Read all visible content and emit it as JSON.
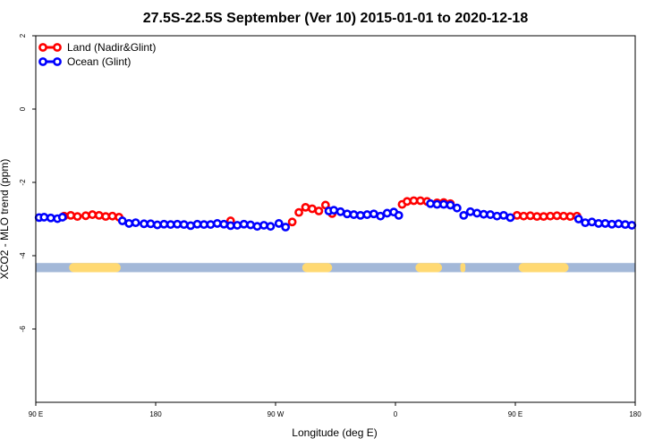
{
  "chart_data": {
    "type": "scatter",
    "title": "27.5S-22.5S September (Ver 10)   2015-01-01 to 2020-12-18",
    "xlabel": "Longitude (deg E)",
    "ylabel": "XCO2 - MLO trend (ppm)",
    "xlim": [
      90,
      450
    ],
    "ylim": [
      -8,
      2
    ],
    "x_ticks": [
      {
        "value": 90,
        "label": "90 E"
      },
      {
        "value": 162,
        "label": "180"
      },
      {
        "value": 234,
        "label": "90 W"
      },
      {
        "value": 306,
        "label": "0"
      },
      {
        "value": 378,
        "label": "90 E"
      },
      {
        "value": 450,
        "label": "180"
      }
    ],
    "y_ticks": [
      {
        "value": 2,
        "label": "2"
      },
      {
        "value": 0,
        "label": "0"
      },
      {
        "value": -2,
        "label": "-2"
      },
      {
        "value": -4,
        "label": "-4"
      },
      {
        "value": -6,
        "label": "-6"
      }
    ],
    "legend_position": "top-left",
    "series": [
      {
        "name": "Land (Nadir&Glint)",
        "color": "#ff0000",
        "x": [
          107,
          111,
          115,
          120,
          124,
          128,
          132,
          136,
          140,
          207,
          244,
          248,
          252,
          256,
          260,
          264,
          268,
          310,
          313,
          317,
          321,
          325,
          331,
          335,
          339,
          379,
          383,
          387,
          391,
          395,
          399,
          403,
          407,
          411,
          415
        ],
        "y": [
          -2.92,
          -2.9,
          -2.93,
          -2.91,
          -2.88,
          -2.9,
          -2.93,
          -2.92,
          -2.95,
          -3.05,
          -3.08,
          -2.82,
          -2.68,
          -2.72,
          -2.78,
          -2.62,
          -2.85,
          -2.6,
          -2.52,
          -2.5,
          -2.5,
          -2.52,
          -2.56,
          -2.55,
          -2.58,
          -2.9,
          -2.92,
          -2.91,
          -2.93,
          -2.93,
          -2.92,
          -2.91,
          -2.92,
          -2.93,
          -2.92
        ]
      },
      {
        "name": "Ocean (Glint)",
        "color": "#0000ff",
        "x": [
          92,
          95,
          99,
          103,
          106,
          142,
          146,
          150,
          155,
          159,
          163,
          167,
          171,
          175,
          179,
          183,
          187,
          191,
          195,
          199,
          203,
          207,
          211,
          215,
          219,
          223,
          227,
          231,
          236,
          240,
          266,
          269,
          273,
          277,
          281,
          285,
          289,
          293,
          297,
          301,
          305,
          308,
          327,
          331,
          335,
          339,
          343,
          347,
          351,
          355,
          359,
          363,
          367,
          371,
          375,
          416,
          420,
          424,
          428,
          432,
          436,
          440,
          444,
          448
        ],
        "y": [
          -2.96,
          -2.95,
          -2.97,
          -2.99,
          -2.95,
          -3.05,
          -3.12,
          -3.1,
          -3.13,
          -3.13,
          -3.16,
          -3.14,
          -3.15,
          -3.14,
          -3.15,
          -3.18,
          -3.14,
          -3.15,
          -3.15,
          -3.12,
          -3.14,
          -3.18,
          -3.17,
          -3.14,
          -3.16,
          -3.2,
          -3.17,
          -3.2,
          -3.12,
          -3.22,
          -2.78,
          -2.76,
          -2.8,
          -2.86,
          -2.88,
          -2.9,
          -2.88,
          -2.86,
          -2.92,
          -2.84,
          -2.81,
          -2.9,
          -2.58,
          -2.6,
          -2.6,
          -2.62,
          -2.7,
          -2.9,
          -2.8,
          -2.84,
          -2.87,
          -2.88,
          -2.92,
          -2.9,
          -2.96,
          -3.0,
          -3.1,
          -3.08,
          -3.12,
          -3.12,
          -3.14,
          -3.13,
          -3.15,
          -3.17
        ]
      }
    ],
    "band": {
      "y_range": [
        -4.45,
        -4.2
      ],
      "ocean_color": "#a3b8d8",
      "land_color": "#ffd972",
      "land_segments": [
        [
          110,
          141
        ],
        [
          250,
          268
        ],
        [
          318,
          334
        ],
        [
          345,
          348
        ],
        [
          380,
          410
        ]
      ]
    }
  }
}
